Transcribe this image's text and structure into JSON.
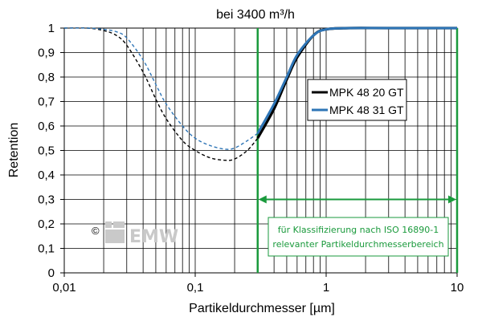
{
  "chart_data": {
    "type": "line",
    "title": "bei 3400 m³/h",
    "xlabel": "Partikeldurchmesser [µm]",
    "ylabel": "Retention",
    "x_scale": "log",
    "xlim": [
      0.01,
      10
    ],
    "ylim": [
      0,
      1
    ],
    "x_ticks": [
      {
        "value": 0.01,
        "label": "0,01"
      },
      {
        "value": 0.1,
        "label": "0,1"
      },
      {
        "value": 1,
        "label": "1"
      },
      {
        "value": 10,
        "label": "10"
      }
    ],
    "y_ticks": [
      {
        "value": 0,
        "label": "0"
      },
      {
        "value": 0.1,
        "label": "0,1"
      },
      {
        "value": 0.2,
        "label": "0,2"
      },
      {
        "value": 0.3,
        "label": "0,3"
      },
      {
        "value": 0.4,
        "label": "0,4"
      },
      {
        "value": 0.5,
        "label": "0,5"
      },
      {
        "value": 0.6,
        "label": "0,6"
      },
      {
        "value": 0.7,
        "label": "0,7"
      },
      {
        "value": 0.8,
        "label": "0,8"
      },
      {
        "value": 0.9,
        "label": "0,9"
      },
      {
        "value": 1,
        "label": "1"
      }
    ],
    "grid": true,
    "legend_position": "upper right, inside plot",
    "series": [
      {
        "name": "MPK 48 20 GT",
        "color": "#000000",
        "dashed_below": 0.3,
        "points": [
          [
            0.01,
            1.0
          ],
          [
            0.015,
            1.0
          ],
          [
            0.02,
            0.99
          ],
          [
            0.025,
            0.97
          ],
          [
            0.03,
            0.93
          ],
          [
            0.04,
            0.82
          ],
          [
            0.05,
            0.71
          ],
          [
            0.06,
            0.63
          ],
          [
            0.08,
            0.54
          ],
          [
            0.1,
            0.5
          ],
          [
            0.13,
            0.47
          ],
          [
            0.17,
            0.46
          ],
          [
            0.2,
            0.465
          ],
          [
            0.25,
            0.5
          ],
          [
            0.3,
            0.55
          ],
          [
            0.4,
            0.67
          ],
          [
            0.5,
            0.79
          ],
          [
            0.6,
            0.88
          ],
          [
            0.8,
            0.97
          ],
          [
            1.0,
            0.995
          ],
          [
            1.5,
            1.0
          ],
          [
            3,
            1.0
          ],
          [
            10,
            1.0
          ]
        ]
      },
      {
        "name": "MPK 48 31 GT",
        "color": "#2e75b6",
        "dashed_below": 0.3,
        "points": [
          [
            0.01,
            1.0
          ],
          [
            0.015,
            1.0
          ],
          [
            0.02,
            0.995
          ],
          [
            0.025,
            0.985
          ],
          [
            0.03,
            0.96
          ],
          [
            0.04,
            0.87
          ],
          [
            0.05,
            0.77
          ],
          [
            0.06,
            0.69
          ],
          [
            0.08,
            0.6
          ],
          [
            0.1,
            0.55
          ],
          [
            0.13,
            0.52
          ],
          [
            0.17,
            0.505
          ],
          [
            0.2,
            0.51
          ],
          [
            0.25,
            0.54
          ],
          [
            0.3,
            0.57
          ],
          [
            0.4,
            0.69
          ],
          [
            0.5,
            0.8
          ],
          [
            0.6,
            0.89
          ],
          [
            0.8,
            0.97
          ],
          [
            1.0,
            0.995
          ],
          [
            1.5,
            1.0
          ],
          [
            3,
            1.0
          ],
          [
            10,
            1.0
          ]
        ]
      }
    ],
    "annotations": {
      "range_start": 0.3,
      "range_end": 10,
      "arrow_y": 0.3,
      "color": "#1a9a3c",
      "text_lines": [
        "für Klassifizierung nach ISO 16890-1",
        "relevanter Partikeldurchmesserbereich"
      ]
    },
    "watermark": {
      "copyright": "©",
      "text": "EMW"
    }
  }
}
